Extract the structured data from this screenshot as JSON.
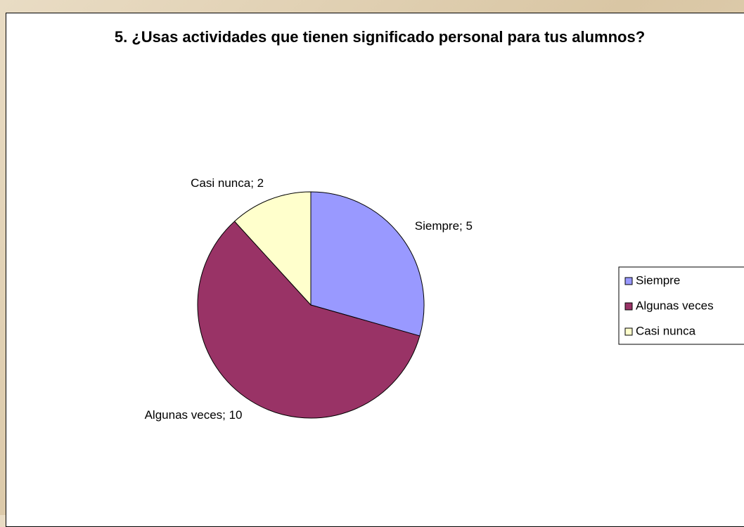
{
  "chart_data": {
    "type": "pie",
    "title": "5. ¿Usas actividades que tienen significado personal para tus alumnos?",
    "categories": [
      "Siempre",
      "Algunas veces",
      "Casi nunca"
    ],
    "values": [
      5,
      10,
      2
    ],
    "value_labels": [
      "Siempre; 5",
      "Algunas veces; 10",
      "Casi nunca; 2"
    ],
    "colors": [
      "#9999ff",
      "#993366",
      "#ffffcc"
    ],
    "legend": "right"
  }
}
